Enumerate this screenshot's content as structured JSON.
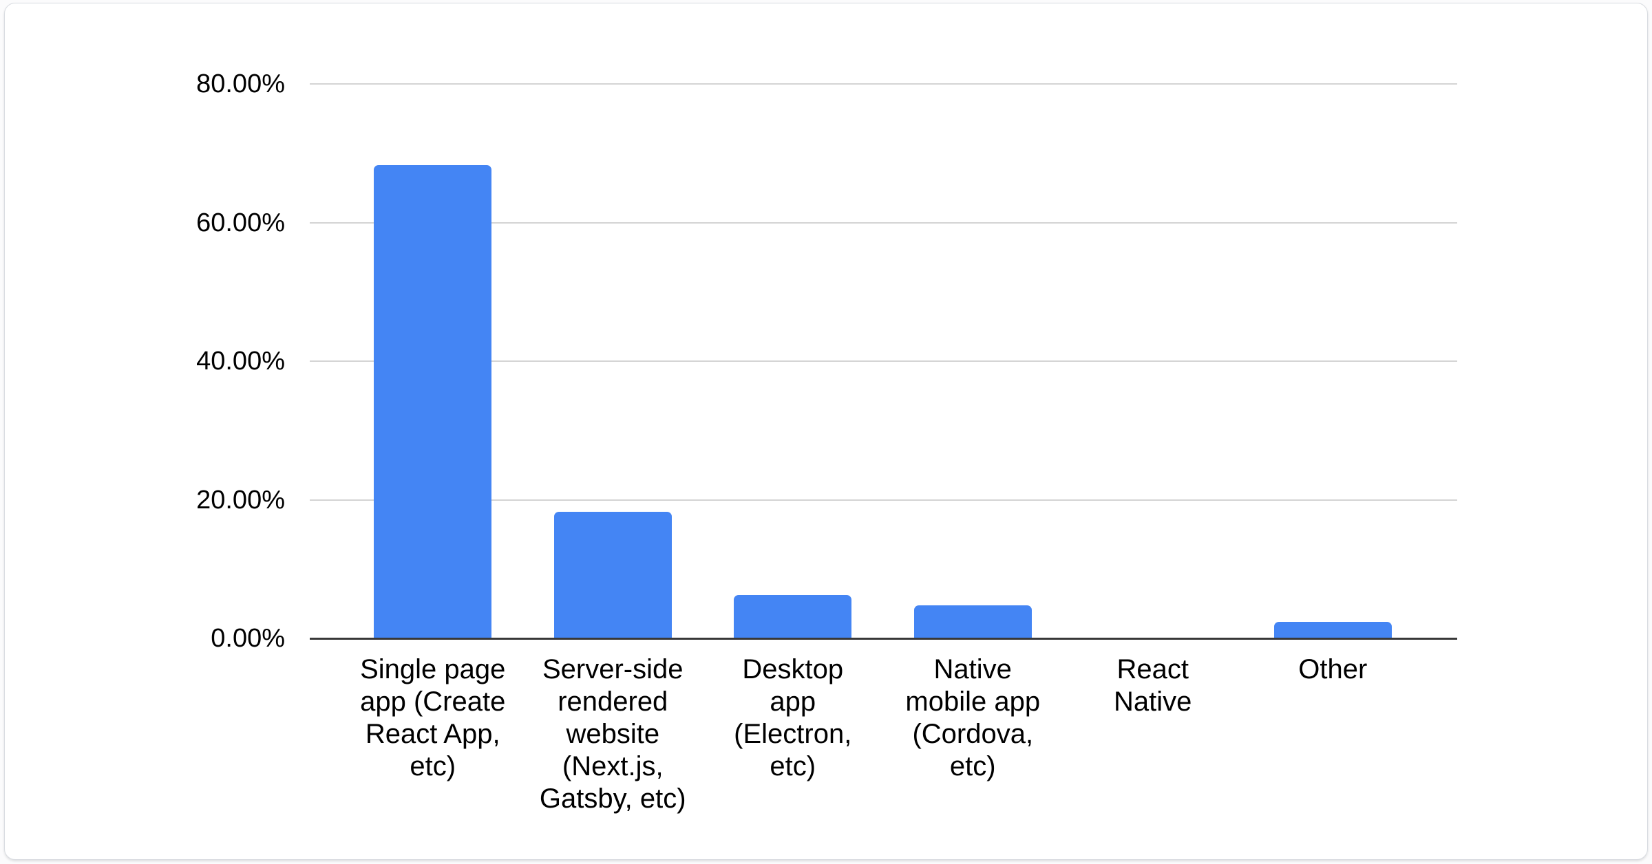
{
  "card": {
    "kind": "chart-card"
  },
  "chart_data": {
    "type": "bar",
    "title": "",
    "xlabel": "",
    "ylabel": "",
    "unit": "%",
    "categories": [
      "Single page app (Create React App, etc)",
      "Server-side rendered website (Next.js, Gatsby, etc)",
      "Desktop app (Electron, etc)",
      "Native mobile app (Cordova, etc)",
      "React Native",
      "Other"
    ],
    "category_label_lines": [
      [
        "Single page",
        "app (Create",
        "React App,",
        "etc)"
      ],
      [
        "Server-side",
        "rendered",
        "website",
        "(Next.js,",
        "Gatsby, etc)"
      ],
      [
        "Desktop",
        "app",
        "(Electron,",
        "etc)"
      ],
      [
        "Native",
        "mobile app",
        "(Cordova,",
        "etc)"
      ],
      [
        "React",
        "Native"
      ],
      [
        "Other"
      ]
    ],
    "values": [
      68.3,
      18.3,
      6.3,
      4.8,
      0,
      2.4
    ],
    "ylim": [
      0,
      80
    ],
    "y_ticks": [
      {
        "value": 0,
        "label": "0.00%"
      },
      {
        "value": 20,
        "label": "20.00%"
      },
      {
        "value": 40,
        "label": "40.00%"
      },
      {
        "value": 60,
        "label": "60.00%"
      },
      {
        "value": 80,
        "label": "80.00%"
      }
    ],
    "grid": true,
    "legend_position": "none",
    "bar_color": "#4485f4",
    "grid_color": "#d4d4d4",
    "axis_color": "#383838",
    "text_color": "#000000"
  }
}
